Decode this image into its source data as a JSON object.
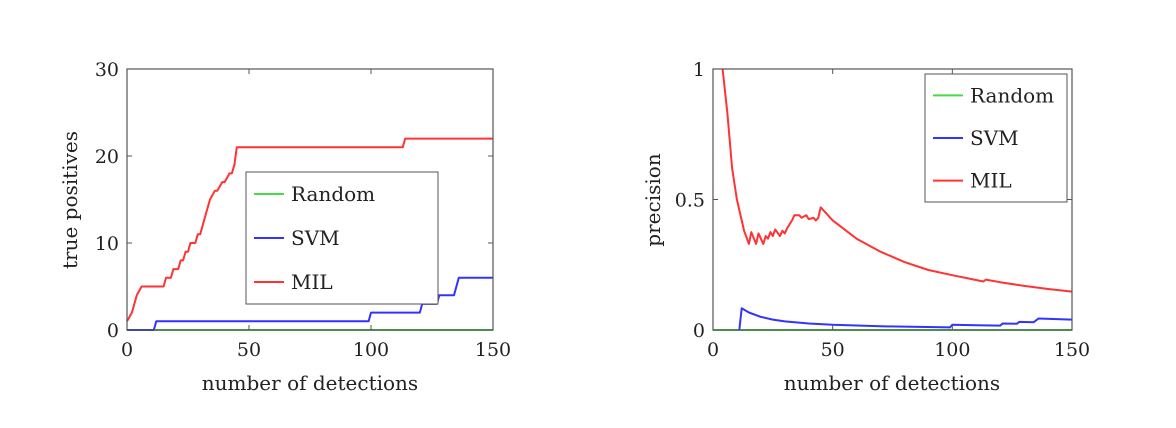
{
  "chart_data": [
    {
      "type": "line",
      "title": "",
      "xlabel": "number of detections",
      "ylabel": "true positives",
      "xlim": [
        0,
        150
      ],
      "ylim": [
        0,
        30
      ],
      "xticks": [
        0,
        50,
        100,
        150
      ],
      "yticks": [
        0,
        10,
        20,
        30
      ],
      "grid": false,
      "legend_position": "center",
      "series": [
        {
          "name": "Random",
          "color": "#44dd44",
          "x": [
            0,
            150
          ],
          "y": [
            0,
            0
          ]
        },
        {
          "name": "SVM",
          "color": "#3333ff",
          "x": [
            0,
            11,
            12,
            99,
            100,
            120,
            121,
            127,
            128,
            134,
            136,
            150
          ],
          "y": [
            0,
            0,
            1,
            1,
            2,
            2,
            3,
            3,
            4,
            4,
            6,
            6
          ]
        },
        {
          "name": "MIL",
          "color": "#ff3333",
          "x": [
            0,
            2,
            4,
            6,
            15,
            16,
            18,
            19,
            21,
            22,
            23,
            24,
            25,
            26,
            28,
            29,
            30,
            31,
            33,
            34,
            36,
            37,
            39,
            40,
            42,
            43,
            44,
            45,
            113,
            114,
            150
          ],
          "y": [
            1,
            2,
            4,
            5,
            5,
            6,
            6,
            7,
            7,
            8,
            8,
            9,
            9,
            10,
            10,
            11,
            11,
            12,
            14,
            15,
            16,
            16,
            17,
            17,
            18,
            18,
            19,
            21,
            21,
            22,
            22
          ]
        }
      ]
    },
    {
      "type": "line",
      "title": "",
      "xlabel": "number of detections",
      "ylabel": "precision",
      "xlim": [
        0,
        150
      ],
      "ylim": [
        0,
        1
      ],
      "xticks": [
        0,
        50,
        100,
        150
      ],
      "yticks": [
        0,
        0.5,
        1
      ],
      "ytick_labels": [
        "0",
        "0.5",
        "1"
      ],
      "grid": false,
      "legend_position": "top-right",
      "series": [
        {
          "name": "Random",
          "color": "#44dd44",
          "x": [
            0,
            150
          ],
          "y": [
            0,
            0
          ]
        },
        {
          "name": "SVM",
          "color": "#3333ff",
          "x": [
            11,
            12,
            15,
            20,
            25,
            30,
            40,
            50,
            70,
            99,
            100,
            110,
            120,
            121,
            127,
            128,
            134,
            136,
            150
          ],
          "y": [
            0,
            0.083,
            0.067,
            0.05,
            0.04,
            0.033,
            0.025,
            0.02,
            0.014,
            0.01,
            0.02,
            0.018,
            0.017,
            0.025,
            0.024,
            0.031,
            0.03,
            0.044,
            0.04
          ]
        },
        {
          "name": "MIL",
          "color": "#ff3333",
          "x": [
            4,
            6,
            8,
            10,
            12,
            13,
            15,
            16,
            18,
            19,
            21,
            22,
            23,
            24,
            25,
            26,
            28,
            29,
            30,
            31,
            33,
            34,
            36,
            37,
            39,
            40,
            42,
            43,
            44,
            45,
            50,
            60,
            70,
            80,
            90,
            100,
            113,
            114,
            120,
            130,
            140,
            150
          ],
          "y": [
            1,
            0.83,
            0.62,
            0.5,
            0.42,
            0.38,
            0.33,
            0.375,
            0.33,
            0.37,
            0.33,
            0.36,
            0.35,
            0.375,
            0.36,
            0.385,
            0.36,
            0.38,
            0.37,
            0.39,
            0.42,
            0.44,
            0.44,
            0.43,
            0.44,
            0.425,
            0.43,
            0.42,
            0.43,
            0.47,
            0.42,
            0.35,
            0.3,
            0.26,
            0.23,
            0.21,
            0.186,
            0.193,
            0.183,
            0.169,
            0.157,
            0.147
          ]
        }
      ]
    }
  ]
}
